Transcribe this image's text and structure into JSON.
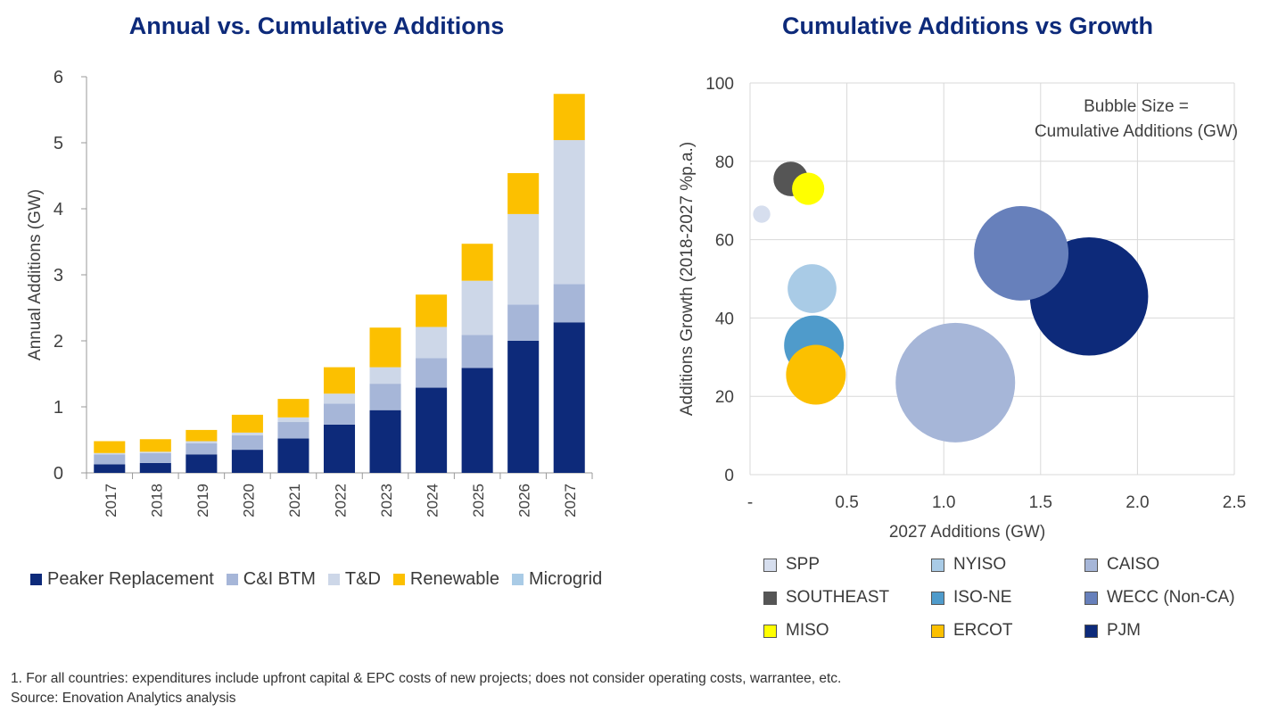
{
  "left_title": "Annual vs. Cumulative Additions",
  "right_title": "Cumulative Additions vs Growth",
  "colors": {
    "peaker": "#0d2a7a",
    "cibtm": "#a6b6d8",
    "td": "#cdd7e8",
    "renewable": "#fcc000",
    "microgrid": "#a9cbe6"
  },
  "chart_data": [
    {
      "type": "bar",
      "stacked": true,
      "title": "Annual vs. Cumulative Additions",
      "xlabel": "",
      "ylabel": "Annual Additions (GW)",
      "ylim": [
        0,
        6
      ],
      "yticks": [
        0,
        1,
        2,
        3,
        4,
        5,
        6
      ],
      "categories": [
        "2017",
        "2018",
        "2019",
        "2020",
        "2021",
        "2022",
        "2023",
        "2024",
        "2025",
        "2026",
        "2027"
      ],
      "series": [
        {
          "name": "Peaker Replacement",
          "color": "#0d2a7a",
          "values": [
            0.13,
            0.15,
            0.28,
            0.35,
            0.52,
            0.73,
            0.95,
            1.29,
            1.59,
            2.0,
            2.28
          ]
        },
        {
          "name": "C&I BTM",
          "color": "#a6b6d8",
          "values": [
            0.15,
            0.15,
            0.17,
            0.22,
            0.25,
            0.32,
            0.4,
            0.45,
            0.5,
            0.55,
            0.58
          ]
        },
        {
          "name": "T&D",
          "color": "#cdd7e8",
          "values": [
            0.02,
            0.02,
            0.03,
            0.04,
            0.07,
            0.15,
            0.25,
            0.47,
            0.82,
            1.37,
            2.18
          ]
        },
        {
          "name": "Renewable",
          "color": "#fcc000",
          "values": [
            0.18,
            0.19,
            0.17,
            0.27,
            0.28,
            0.4,
            0.6,
            0.49,
            0.56,
            0.62,
            0.7
          ]
        },
        {
          "name": "Microgrid",
          "color": "#a9cbe6",
          "values": [
            0,
            0,
            0,
            0,
            0,
            0,
            0,
            0,
            0,
            0,
            0
          ]
        }
      ],
      "legend": "bottom"
    },
    {
      "type": "scatter",
      "bubble": true,
      "title": "Cumulative Additions vs Growth",
      "xlabel": "2027 Additions (GW)",
      "ylabel": "Additions Growth (2018-2027 %p.a.)",
      "xlim": [
        0,
        2.5
      ],
      "ylim": [
        0,
        100
      ],
      "xticks": [
        "-",
        "0.5",
        "1.0",
        "1.5",
        "2.0",
        "2.5"
      ],
      "yticks": [
        "0",
        "20",
        "40",
        "60",
        "80",
        "100"
      ],
      "annotation": [
        "Bubble Size =",
        "Cumulative Additions (GW)"
      ],
      "points": [
        {
          "name": "SPP",
          "color": "#d6deee",
          "x": 0.06,
          "y": 66.5,
          "size": 0.1
        },
        {
          "name": "NYISO",
          "color": "#a9cbe6",
          "x": 0.32,
          "y": 47.5,
          "size": 0.8
        },
        {
          "name": "CAISO",
          "color": "#a6b6d8",
          "x": 1.06,
          "y": 23.5,
          "size": 4.8
        },
        {
          "name": "SOUTHEAST",
          "color": "#555555",
          "x": 0.21,
          "y": 75.5,
          "size": 0.4
        },
        {
          "name": "ISO-NE",
          "color": "#4f9bcb",
          "x": 0.33,
          "y": 33,
          "size": 1.2
        },
        {
          "name": "WECC (Non-CA)",
          "color": "#6780bb",
          "x": 1.4,
          "y": 56.5,
          "size": 3.0
        },
        {
          "name": "MISO",
          "color": "#ffff00",
          "x": 0.3,
          "y": 73,
          "size": 0.35
        },
        {
          "name": "ERCOT",
          "color": "#fcc000",
          "x": 0.34,
          "y": 25.5,
          "size": 1.2
        },
        {
          "name": "PJM",
          "color": "#0d2a7a",
          "x": 1.75,
          "y": 45.5,
          "size": 4.7
        }
      ]
    }
  ],
  "legend2_rows": [
    [
      "SPP",
      "NYISO",
      "CAISO"
    ],
    [
      "SOUTHEAST",
      "ISO-NE",
      "WECC (Non-CA)"
    ],
    [
      "MISO",
      "ERCOT",
      "PJM"
    ]
  ],
  "footnotes": [
    "1. For all countries: expenditures include upfront capital & EPC costs of new projects; does not consider operating costs, warrantee, etc.",
    "Source: Enovation Analytics analysis"
  ]
}
